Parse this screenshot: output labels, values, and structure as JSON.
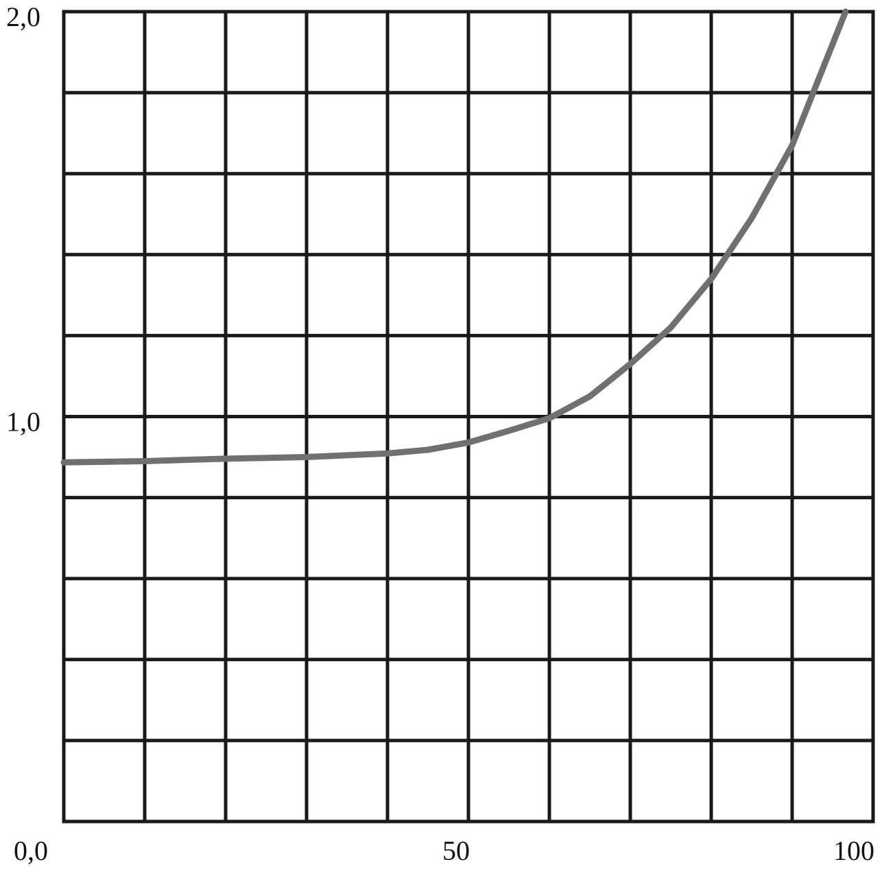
{
  "chart_data": {
    "type": "line",
    "x": [
      0,
      10,
      20,
      30,
      40,
      45,
      50,
      55,
      60,
      65,
      70,
      75,
      80,
      85,
      90,
      95,
      96.6
    ],
    "series": [
      {
        "color": "#707070",
        "values": [
          0.887,
          0.89,
          0.896,
          0.9,
          0.909,
          0.918,
          0.936,
          0.965,
          0.996,
          1.05,
          1.13,
          1.22,
          1.34,
          1.49,
          1.67,
          1.92,
          2.0
        ]
      }
    ],
    "xlim": [
      0,
      100
    ],
    "ylim": [
      0,
      2
    ],
    "xticks": [
      50,
      100
    ],
    "yticks": [
      {
        "value": 0,
        "label": "0,0"
      },
      {
        "value": 1,
        "label": "1,0"
      },
      {
        "value": 2,
        "label": "2,0"
      }
    ],
    "x_grid": [
      0,
      10,
      20,
      30,
      40,
      50,
      60,
      70,
      80,
      90,
      100
    ],
    "y_grid": [
      0,
      0.2,
      0.4,
      0.6,
      0.8,
      1,
      1.2,
      1.4,
      1.6,
      1.8,
      2
    ],
    "grid": true
  }
}
